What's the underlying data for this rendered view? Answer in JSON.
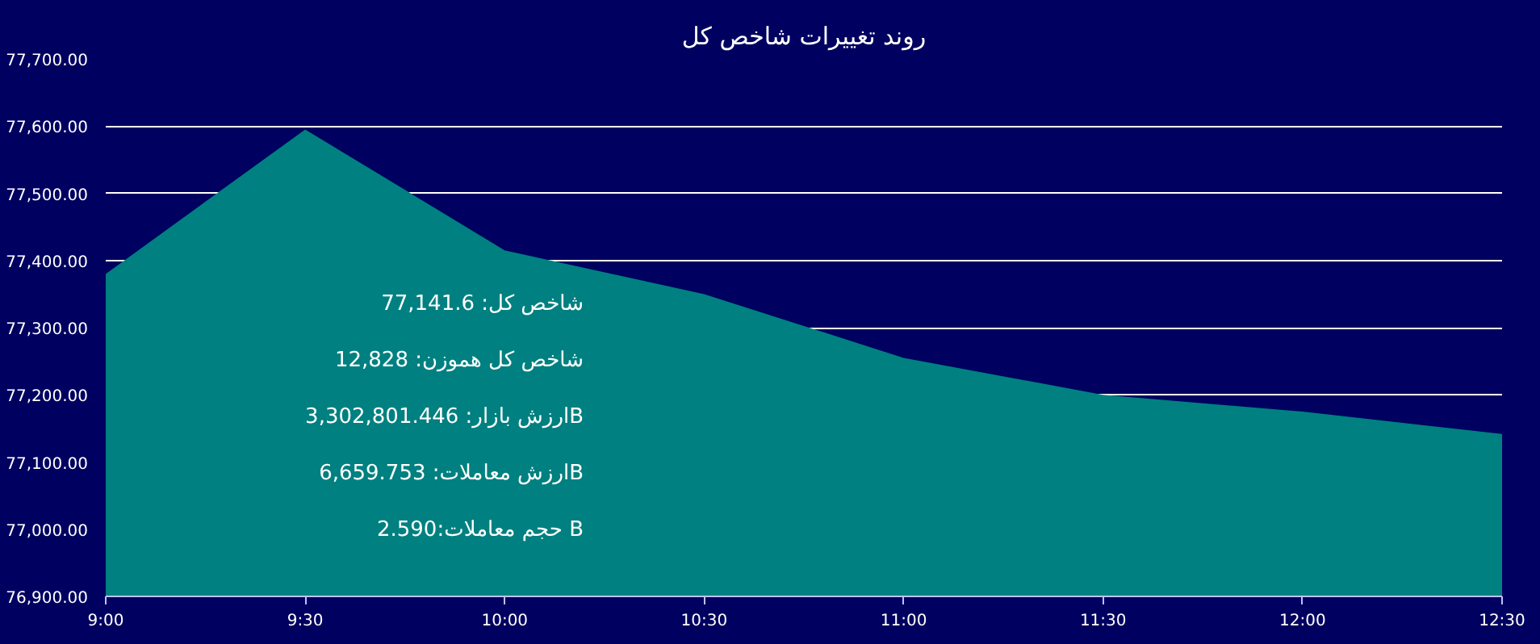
{
  "chart_data": {
    "type": "area",
    "title": "روند تغییرات شاخص کل",
    "x": [
      9,
      9.5,
      10,
      10.5,
      11,
      11.5,
      12,
      12.5
    ],
    "series": [
      {
        "color": "#008080",
        "values": [
          77380,
          77595,
          77415,
          77350,
          77255,
          77200,
          77175,
          77141.6
        ]
      }
    ],
    "xlim": [
      9,
      12.5
    ],
    "xticks": [
      {
        "value": 9,
        "label": "9:00"
      },
      {
        "value": 9.5,
        "label": "9:30"
      },
      {
        "value": 10,
        "label": "10:00"
      },
      {
        "value": 10.5,
        "label": "10:30"
      },
      {
        "value": 11,
        "label": "11:00"
      },
      {
        "value": 11.5,
        "label": "11:30"
      },
      {
        "value": 12,
        "label": "12:00"
      },
      {
        "value": 12.5,
        "label": "12:30"
      }
    ],
    "ylim": [
      76900,
      77700
    ],
    "yticks": [
      {
        "value": 76900,
        "label": "76,900.00"
      },
      {
        "value": 77000,
        "label": "77,000.00"
      },
      {
        "value": 77100,
        "label": "77,100.00"
      },
      {
        "value": 77200,
        "label": "77,200.00"
      },
      {
        "value": 77300,
        "label": "77,300.00"
      },
      {
        "value": 77400,
        "label": "77,400.00"
      },
      {
        "value": 77500,
        "label": "77,500.00"
      },
      {
        "value": 77600,
        "label": "77,600.00"
      },
      {
        "value": 77700,
        "label": "77,700.00"
      }
    ],
    "grid": "y",
    "annotations": [
      "شاخص کل: 77,141.6",
      "شاخص کل هموزن: 12,828",
      "ارزش بازار: 3,302,801.446B",
      "ارزش معاملات: 6,659.753B",
      "حجم معاملات:2.590 B"
    ]
  }
}
